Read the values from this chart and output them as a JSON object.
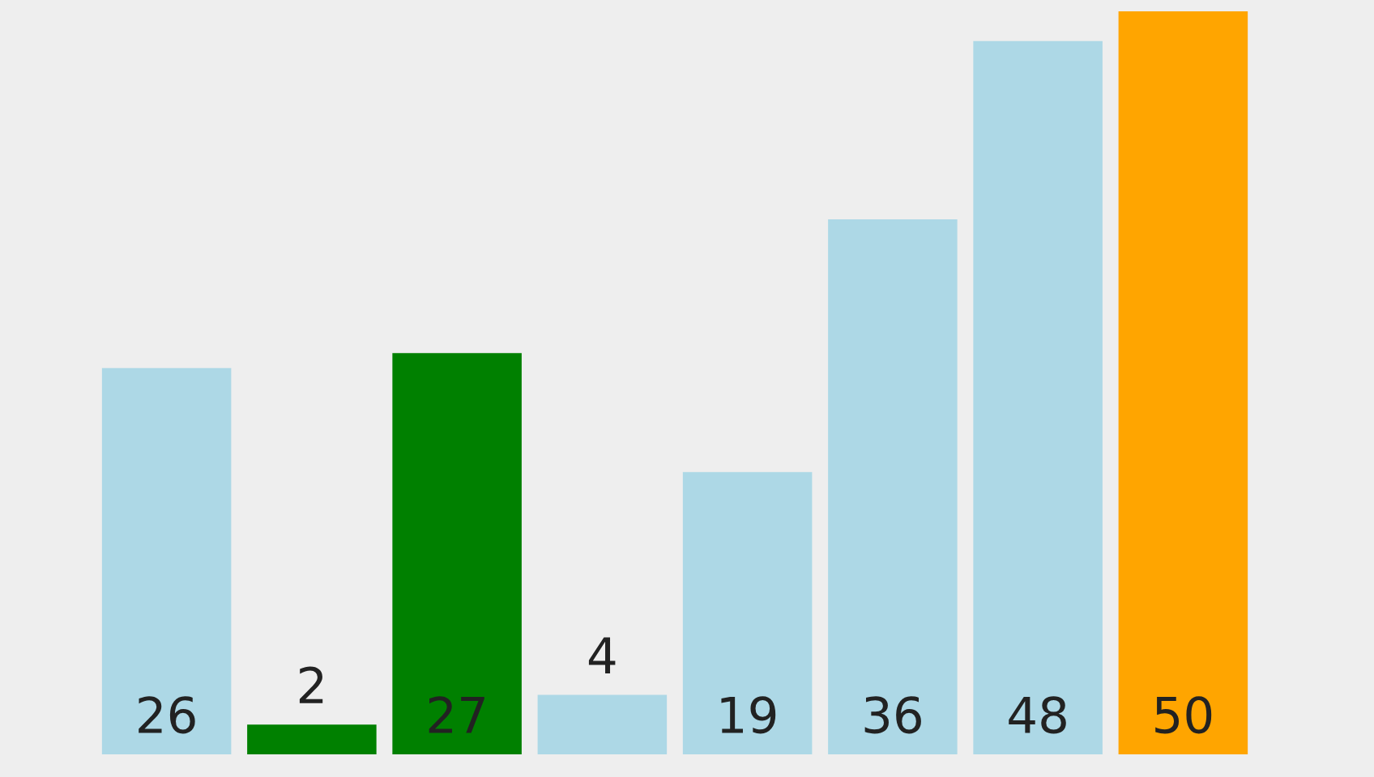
{
  "chart_data": {
    "type": "bar",
    "categories": [
      null,
      null,
      null,
      null,
      null,
      null,
      null,
      null
    ],
    "values": [
      26,
      2,
      27,
      4,
      19,
      36,
      48,
      50
    ],
    "colors": [
      "#add8e6",
      "#008000",
      "#008000",
      "#add8e6",
      "#add8e6",
      "#add8e6",
      "#add8e6",
      "#ffa500"
    ],
    "data_labels": true,
    "grid": false,
    "legend": false,
    "tick_labels": false
  }
}
